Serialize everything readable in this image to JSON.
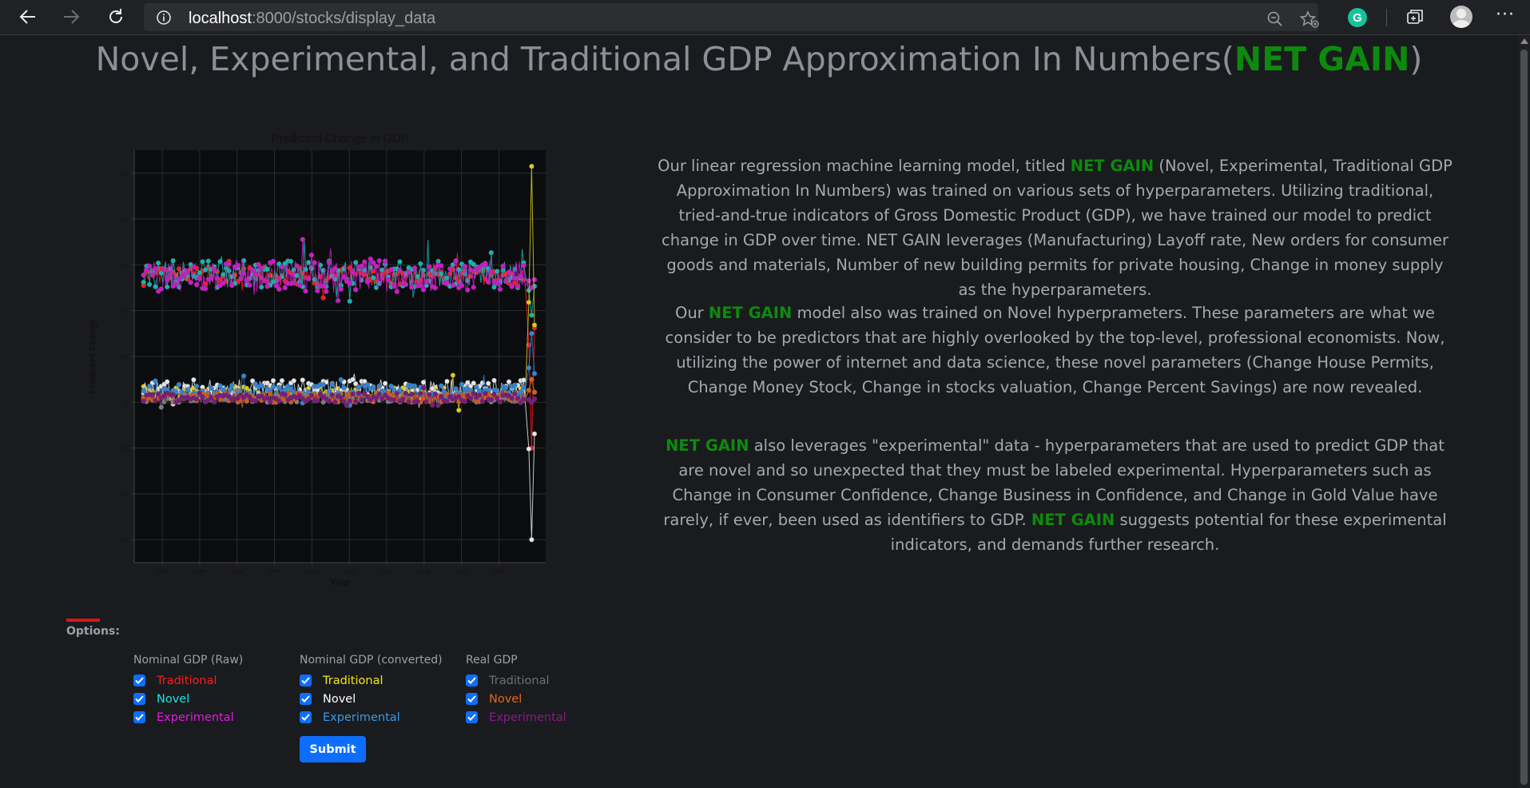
{
  "browser": {
    "url_host": "localhost",
    "url_path": ":8000/stocks/display_data",
    "icons": [
      "back-icon",
      "forward-icon",
      "refresh-icon",
      "info-icon",
      "zoom-out-icon",
      "favorites-add-icon",
      "grammarly-icon",
      "collections-icon",
      "profile-avatar",
      "more-icon"
    ],
    "grammarly_letter": "G",
    "more_label": "···"
  },
  "page": {
    "title_prefix": "Novel, Experimental, and Traditional GDP Approximation In Numbers(",
    "title_brand": "NET GAIN",
    "title_suffix": ")",
    "brand_color": "#0d8a0d"
  },
  "description": {
    "p1_pre": "Our linear regression machine learning model, titled ",
    "p1_brand": "NET GAIN",
    "p1_post": " (Novel, Experimental, Traditional GDP Approximation In Numbers) was trained on various sets of hyperparameters. Utilizing traditional, tried-and-true indicators of Gross Domestic Product (GDP), we have trained our model to predict change in GDP over time. NET GAIN leverages (Manufacturing) Layoff rate, New orders for consumer goods and materials, Number of new building permits for private housing, Change in money supply as the hyperparameters.",
    "p2_pre": "Our ",
    "p2_brand": "NET GAIN",
    "p2_post": " model also was trained on Novel hyperprameters. These parameters are what we consider to be predictors that are highly overlooked by the top-level, professional economists. Now, utilizing the power of internet and data science, these novel parameters (Change House Permits, Change Money Stock, Change in stocks valuation, Change Percent Savings) are now revealed.",
    "p3_brand1": "NET GAIN",
    "p3_mid": " also leverages \"experimental\" data - hyperparameters that are used to predict GDP that are novel and so unexpected that they must be labeled experimental. Hyperparameters such as Change in Consumer Confidence, Change Business in Confidence, and Change in Gold Value have rarely, if ever, been used as identifiers to GDP. ",
    "p3_brand2": "NET GAIN",
    "p3_post": " suggests potential for these experimental indicators, and demands further research."
  },
  "options": {
    "label": "Options:",
    "groups": [
      {
        "title": "Nominal GDP (Raw)",
        "items": [
          {
            "label": "Traditional",
            "color": "#ff1a1a",
            "checked": true
          },
          {
            "label": "Novel",
            "color": "#19e6e6",
            "checked": true
          },
          {
            "label": "Experimental",
            "color": "#e619e6",
            "checked": true
          }
        ]
      },
      {
        "title": "Nominal GDP (converted)",
        "items": [
          {
            "label": "Traditional",
            "color": "#f2e61a",
            "checked": true
          },
          {
            "label": "Novel",
            "color": "#ffffff",
            "checked": true
          },
          {
            "label": "Experimental",
            "color": "#3a9be8",
            "checked": true
          }
        ]
      },
      {
        "title": "Real GDP",
        "items": [
          {
            "label": "Traditional",
            "color": "#6b7178",
            "checked": true
          },
          {
            "label": "Novel",
            "color": "#e8651a",
            "checked": true
          },
          {
            "label": "Experimental",
            "color": "#8a1a8a",
            "checked": true
          }
        ]
      }
    ],
    "submit_label": "Submit"
  },
  "chart_data": {
    "type": "line",
    "title": "Predicted Change in GDP",
    "xlabel": "Year",
    "ylabel": "Predicted Change",
    "xlim": [
      2000.5,
      2022.5
    ],
    "ylim": [
      -0.07,
      0.11
    ],
    "x_ticks": [
      "2,002",
      "2,004",
      "2,006",
      "2,008",
      "2,010",
      "2,012",
      "2,014",
      "2,016",
      "2,018",
      "2,020"
    ],
    "y_ticks": [
      "-0.06",
      "-0.04",
      "-0.02",
      "0",
      "0.02",
      "0.04",
      "0.06",
      "0.08",
      "0.10"
    ],
    "grid": true,
    "series": [
      {
        "color": "#ff1a1a",
        "level": 0.055,
        "spread": 0.004,
        "end_value": -0.02
      },
      {
        "color": "#19b3b3",
        "level": 0.056,
        "spread": 0.006,
        "end_value": 0.038
      },
      {
        "color": "#cc19cc",
        "level": 0.055,
        "spread": 0.007,
        "end_value": 0.05
      },
      {
        "color": "#d9cc1a",
        "level": 0.004,
        "spread": 0.003,
        "end_value": 0.103
      },
      {
        "color": "#e6e6e6",
        "level": 0.006,
        "spread": 0.004,
        "end_value": -0.06
      },
      {
        "color": "#2e86d9",
        "level": 0.005,
        "spread": 0.003,
        "end_value": 0.03
      },
      {
        "color": "#7a7f86",
        "level": 0.002,
        "spread": 0.002,
        "end_value": 0.01
      },
      {
        "color": "#d95a1a",
        "level": 0.002,
        "spread": 0.002,
        "end_value": 0.01
      },
      {
        "color": "#7a1a7a",
        "level": 0.002,
        "spread": 0.002,
        "end_value": 0.0
      }
    ]
  }
}
